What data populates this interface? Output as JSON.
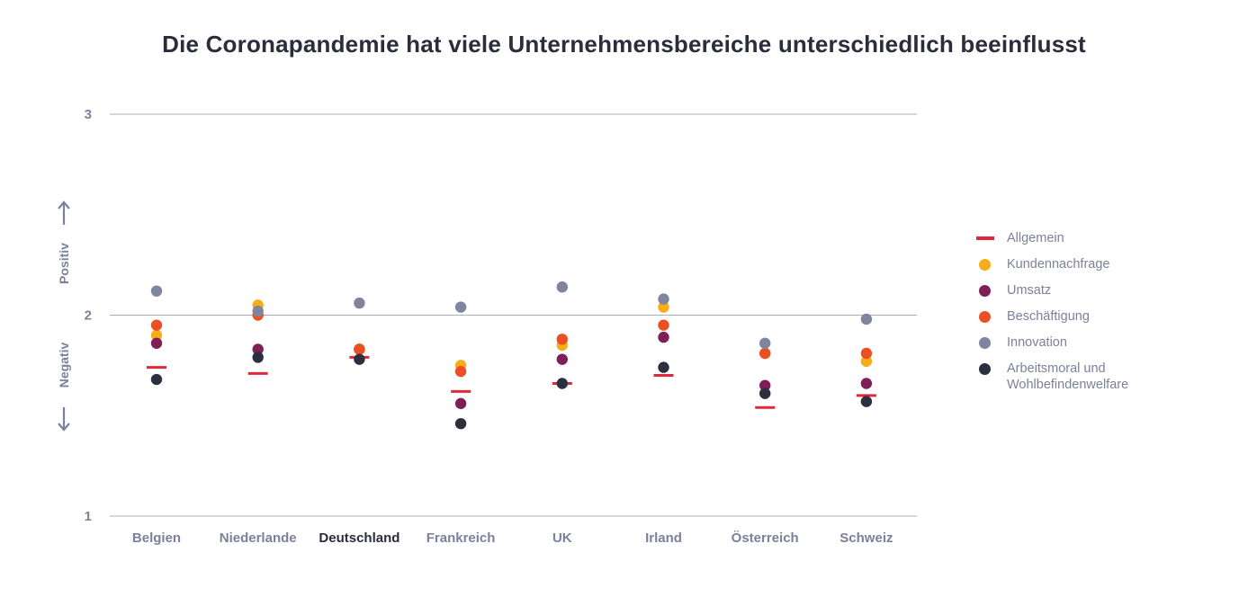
{
  "title": "Die Coronapandemie hat viele Unternehmensbereiche unterschiedlich beeinflusst",
  "axis": {
    "positive_label": "Positiv",
    "negative_label": "Negativ"
  },
  "chart_data": {
    "type": "scatter",
    "title": "Die Coronapandemie hat viele Unternehmensbereiche unterschiedlich beeinflusst",
    "categories": [
      "Belgien",
      "Niederlande",
      "Deutschland",
      "Frankreich",
      "UK",
      "Irland",
      "Österreich",
      "Schweiz"
    ],
    "highlighted_category": "Deutschland",
    "ylim": [
      1,
      3
    ],
    "yticks": [
      1,
      2,
      3
    ],
    "ylabel_positive": "Positiv",
    "ylabel_negative": "Negativ",
    "grid": true,
    "legend_position": "right",
    "series": [
      {
        "name": "Allgemein",
        "marker": "dash",
        "color": "#e0283c",
        "values": [
          1.74,
          1.71,
          1.79,
          1.62,
          1.66,
          1.7,
          1.54,
          1.6
        ]
      },
      {
        "name": "Kundennachfrage",
        "marker": "dot",
        "color": "#f6ad17",
        "values": [
          1.9,
          2.05,
          1.83,
          1.75,
          1.85,
          2.04,
          1.81,
          1.77
        ]
      },
      {
        "name": "Umsatz",
        "marker": "dot",
        "color": "#7e1f57",
        "values": [
          1.86,
          1.83,
          1.83,
          1.56,
          1.78,
          1.89,
          1.65,
          1.66
        ]
      },
      {
        "name": "Beschäftigung",
        "marker": "dot",
        "color": "#ea5024",
        "values": [
          1.95,
          2.0,
          1.83,
          1.72,
          1.88,
          1.95,
          1.81,
          1.81
        ]
      },
      {
        "name": "Innovation",
        "marker": "dot",
        "color": "#7f849f",
        "values": [
          2.12,
          2.02,
          2.06,
          2.04,
          2.14,
          2.08,
          1.86,
          1.98
        ]
      },
      {
        "name": "Arbeitsmoral und Wohlbefindenwelfare",
        "marker": "dot",
        "color": "#2c2f3d",
        "values": [
          1.68,
          1.79,
          1.78,
          1.46,
          1.66,
          1.74,
          1.61,
          1.57
        ]
      }
    ]
  }
}
